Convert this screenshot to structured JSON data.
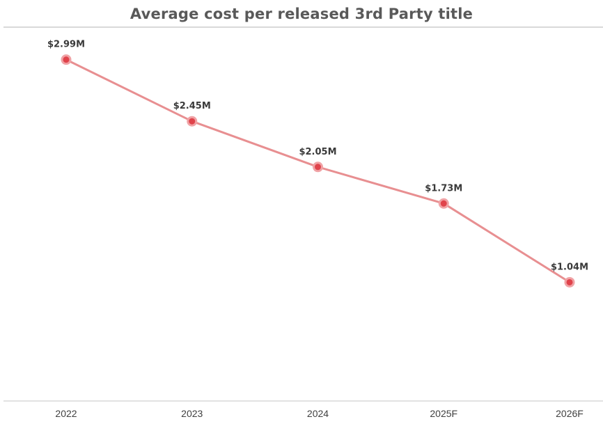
{
  "colors": {
    "line": "#e88f91",
    "marker_fill": "#e0434b",
    "marker_ring": "#f0a2a5",
    "axis": "#d9d9d9",
    "title": "#595959"
  },
  "chart_data": {
    "type": "line",
    "title": "Average cost per released 3rd Party title",
    "xlabel": "",
    "ylabel": "",
    "categories": [
      "2022",
      "2023",
      "2024",
      "2025F",
      "2026F"
    ],
    "series": [
      {
        "values": [
          2.99,
          2.45,
          2.05,
          1.73,
          1.04
        ],
        "data_labels": [
          "$2.99M",
          "$2.45M",
          "$2.05M",
          "$1.73M",
          "$1.04M"
        ]
      }
    ],
    "y_unit": "$M",
    "ylim": [
      0,
      3.5
    ],
    "grid": false,
    "legend": "none"
  }
}
